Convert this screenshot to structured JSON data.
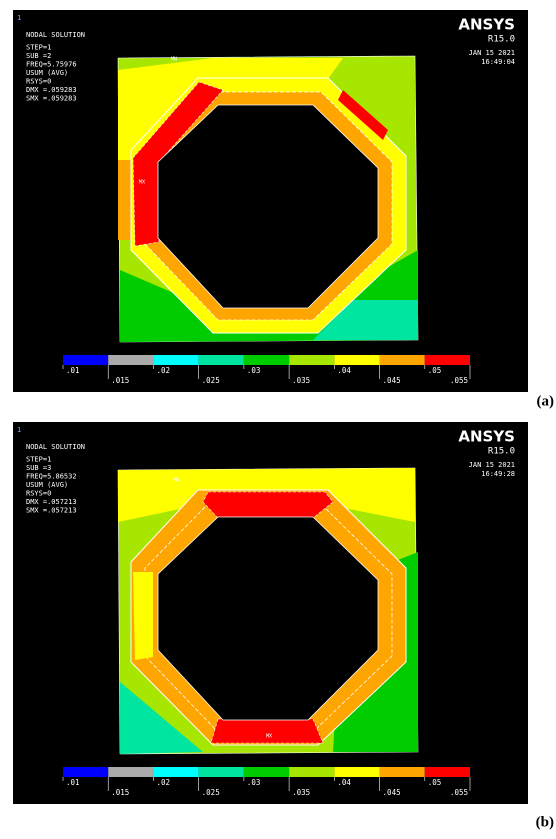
{
  "panels": [
    {
      "window_number": "1",
      "header": [
        "NODAL SOLUTION",
        "STEP=1",
        "SUB =2",
        "FREQ=5.75976",
        "USUM      (AVG)",
        "RSYS=0",
        "DMX =.059283",
        "SMX =.059283"
      ],
      "logo": "ANSYS",
      "version": "R15.0",
      "date": "JAN 15 2021",
      "time": "16:49:04",
      "min_label": "MN",
      "max_label": "MX",
      "legend": {
        "upper": [
          ".01",
          ".02",
          ".03",
          ".04",
          ".05"
        ],
        "lower": [
          ".015",
          ".025",
          ".035",
          ".045",
          ".055"
        ]
      },
      "caption": "(a)"
    },
    {
      "window_number": "1",
      "header": [
        "NODAL SOLUTION",
        "STEP=1",
        "SUB =3",
        "FREQ=5.86532",
        "USUM      (AVG)",
        "RSYS=0",
        "DMX =.057213",
        "SMX =.057213"
      ],
      "logo": "ANSYS",
      "version": "R15.0",
      "date": "JAN 15 2021",
      "time": "16:49:28",
      "min_label": "MN",
      "max_label": "MX",
      "legend": {
        "upper": [
          ".01",
          ".02",
          ".03",
          ".04",
          ".05"
        ],
        "lower": [
          ".015",
          ".025",
          ".035",
          ".045",
          ".055"
        ]
      },
      "caption": "(b)"
    }
  ]
}
